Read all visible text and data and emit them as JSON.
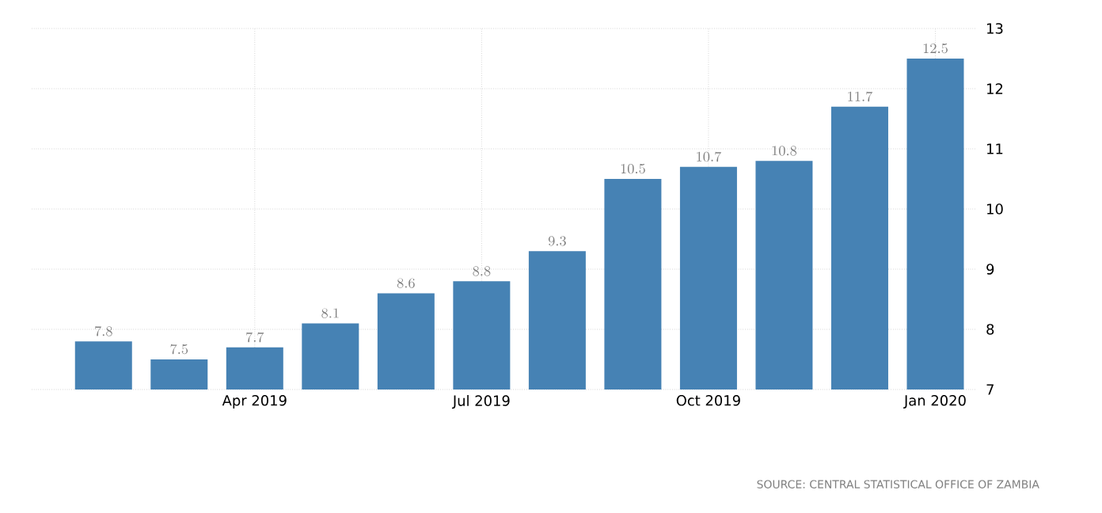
{
  "chart_data": {
    "type": "bar",
    "categories": [
      null,
      null,
      "Apr 2019",
      null,
      null,
      "Jul 2019",
      null,
      null,
      "Oct 2019",
      null,
      null,
      "Jan 2020"
    ],
    "values": [
      7.8,
      7.5,
      7.7,
      8.1,
      8.6,
      8.8,
      9.3,
      10.5,
      10.7,
      10.8,
      11.7,
      12.5
    ],
    "color": "#4682b4",
    "ylim": [
      7,
      13
    ],
    "yticks": [
      7,
      8,
      9,
      10,
      11,
      12,
      13
    ],
    "grid": true,
    "data_labels": true,
    "annotations": [
      "SOURCE: CENTRAL STATISTICAL OFFICE OF ZAMBIA"
    ]
  }
}
